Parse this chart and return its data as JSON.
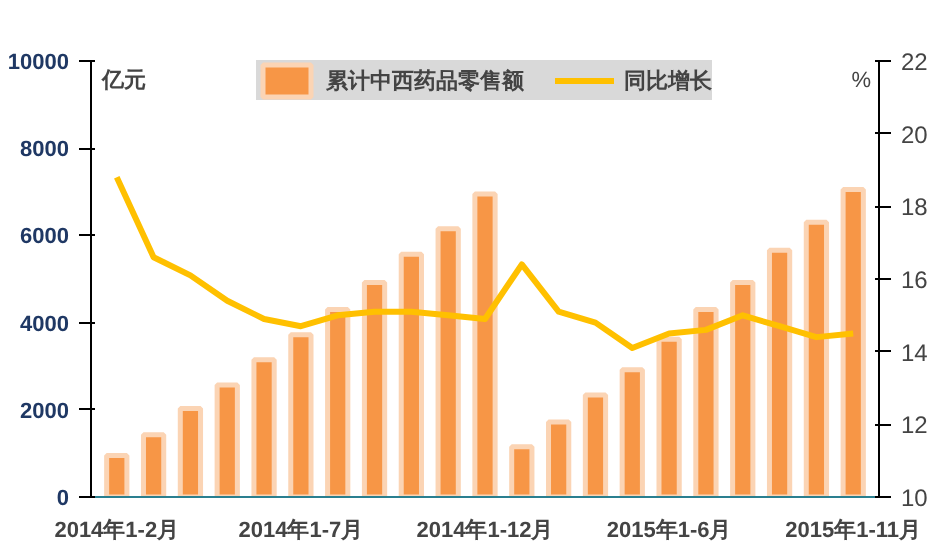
{
  "chart_data": {
    "type": "bar",
    "ylabel": "亿元",
    "y2label": "%",
    "categories": [
      "2014年1-2月",
      null,
      null,
      null,
      null,
      "2014年1-7月",
      null,
      null,
      null,
      null,
      "2014年1-12月",
      null,
      null,
      null,
      null,
      "2015年1-6月",
      null,
      null,
      null,
      null,
      "2015年1-11月"
    ],
    "series": [
      {
        "name": "累计中西药品零售额",
        "color": "#f79646",
        "values": [
          950,
          1430,
          2030,
          2570,
          3150,
          3720,
          4300,
          4920,
          5570,
          6150,
          6950,
          1150,
          1720,
          2340,
          2920,
          3620,
          4300,
          4920,
          5660,
          6300,
          7050
        ]
      },
      {
        "name": "同比增长",
        "type": "line",
        "axis": "y2",
        "color": "#ffc000",
        "values": [
          18.8,
          16.6,
          16.1,
          15.4,
          14.9,
          14.7,
          15.0,
          15.1,
          15.1,
          15.0,
          14.9,
          16.4,
          15.1,
          14.8,
          14.1,
          14.5,
          14.6,
          15.0,
          14.7,
          14.4,
          14.5
        ]
      }
    ],
    "ylim": [
      0,
      10000
    ],
    "yticks": [
      0,
      2000,
      4000,
      6000,
      8000,
      10000
    ],
    "y2lim": [
      10,
      22
    ],
    "y2ticks": [
      10,
      12,
      14,
      16,
      18,
      20,
      22
    ],
    "grid": false,
    "legend": "top"
  }
}
